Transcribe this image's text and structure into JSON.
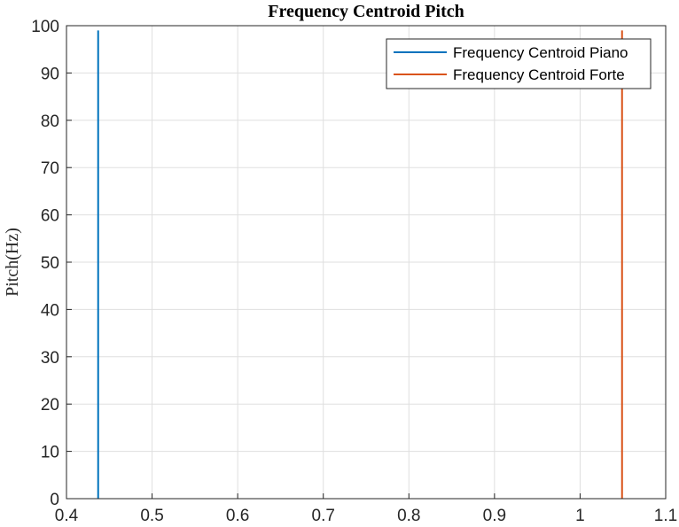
{
  "chart_data": {
    "type": "line",
    "title": "Frequency Centroid Pitch",
    "xlabel": "",
    "ylabel": "Pitch(Hz)",
    "xlim": [
      0.4,
      1.1
    ],
    "ylim": [
      0,
      100
    ],
    "xticks": [
      "0.4",
      "0.5",
      "0.6",
      "0.7",
      "0.8",
      "0.9",
      "1",
      "1.1"
    ],
    "yticks": [
      "0",
      "10",
      "20",
      "30",
      "40",
      "50",
      "60",
      "70",
      "80",
      "90",
      "100"
    ],
    "grid": true,
    "legend_location": "top-right",
    "series": [
      {
        "name": "Frequency Centroid Piano",
        "color": "#0072BD",
        "x": [
          0.437,
          0.437
        ],
        "y": [
          0,
          99
        ]
      },
      {
        "name": "Frequency Centroid Forte",
        "color": "#D95319",
        "x": [
          1.049,
          1.049
        ],
        "y": [
          0,
          99
        ]
      }
    ]
  }
}
